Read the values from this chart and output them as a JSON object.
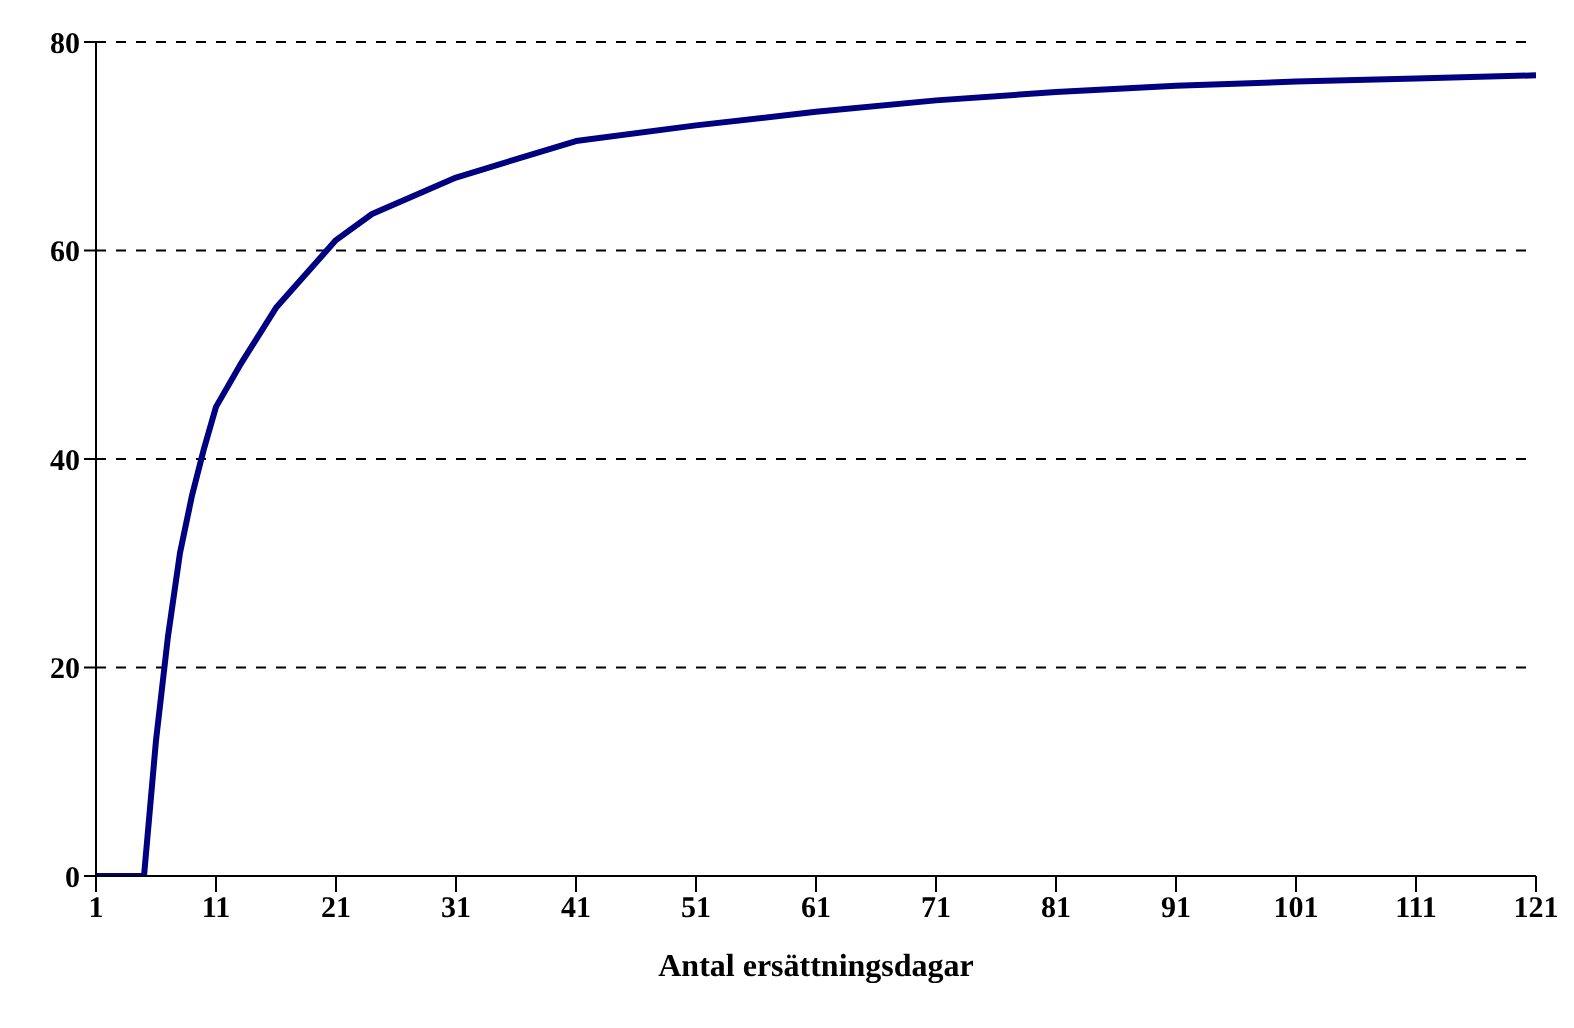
{
  "chart_data": {
    "type": "line",
    "xlabel": "Antal ersättningsdagar",
    "x": [
      1,
      2,
      3,
      4,
      5,
      6,
      7,
      8,
      9,
      10,
      11,
      13,
      16,
      21,
      24,
      31,
      41,
      51,
      61,
      71,
      81,
      91,
      101,
      111,
      121
    ],
    "series": [
      {
        "color": "#000080",
        "values": [
          0,
          0,
          0,
          0,
          0,
          13,
          23,
          31,
          36.5,
          41,
          45,
          49,
          54.5,
          61,
          63.5,
          67,
          70.5,
          72,
          73.3,
          74.4,
          75.2,
          75.8,
          76.2,
          76.5,
          76.8
        ]
      }
    ],
    "xlim": [
      1,
      121
    ],
    "xticks": [
      1,
      11,
      21,
      31,
      41,
      51,
      61,
      71,
      81,
      91,
      101,
      111,
      121
    ],
    "ylim": [
      0,
      80
    ],
    "yticks": [
      0,
      20,
      40,
      60,
      80
    ],
    "grid": "y",
    "marker": "none",
    "line_style": "solid"
  }
}
